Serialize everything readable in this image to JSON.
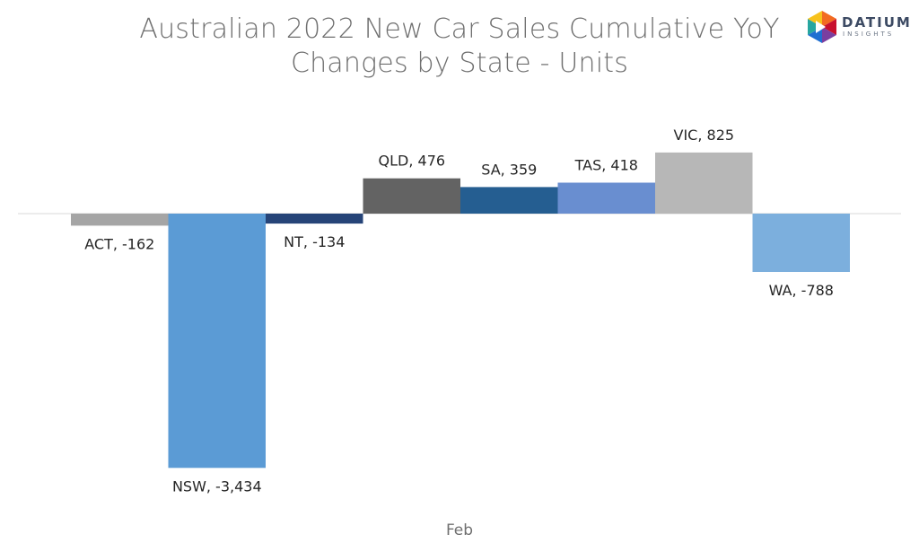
{
  "chart_data": {
    "type": "bar",
    "title_lines": [
      "Australian 2022 New Car Sales Cumulative YoY",
      "Changes by State - Units"
    ],
    "category_axis_label": "Feb",
    "series": [
      {
        "name": "ACT",
        "value": -162,
        "label": "ACT, -162",
        "color": "#a5a5a5"
      },
      {
        "name": "NSW",
        "value": -3434,
        "label": "NSW, -3,434",
        "color": "#5b9bd5"
      },
      {
        "name": "NT",
        "value": -134,
        "label": "NT, -134",
        "color": "#264478"
      },
      {
        "name": "QLD",
        "value": 476,
        "label": "QLD, 476",
        "color": "#636363"
      },
      {
        "name": "SA",
        "value": 359,
        "label": "SA, 359",
        "color": "#255e91"
      },
      {
        "name": "TAS",
        "value": 418,
        "label": "TAS, 418",
        "color": "#698ed0"
      },
      {
        "name": "VIC",
        "value": 825,
        "label": "VIC, 825",
        "color": "#b7b7b7"
      },
      {
        "name": "WA",
        "value": -788,
        "label": "WA, -788",
        "color": "#7cafdd"
      }
    ],
    "grid": false,
    "legend": "none"
  },
  "logo": {
    "word": "DATIUM",
    "sub": "INSIGHTS"
  }
}
